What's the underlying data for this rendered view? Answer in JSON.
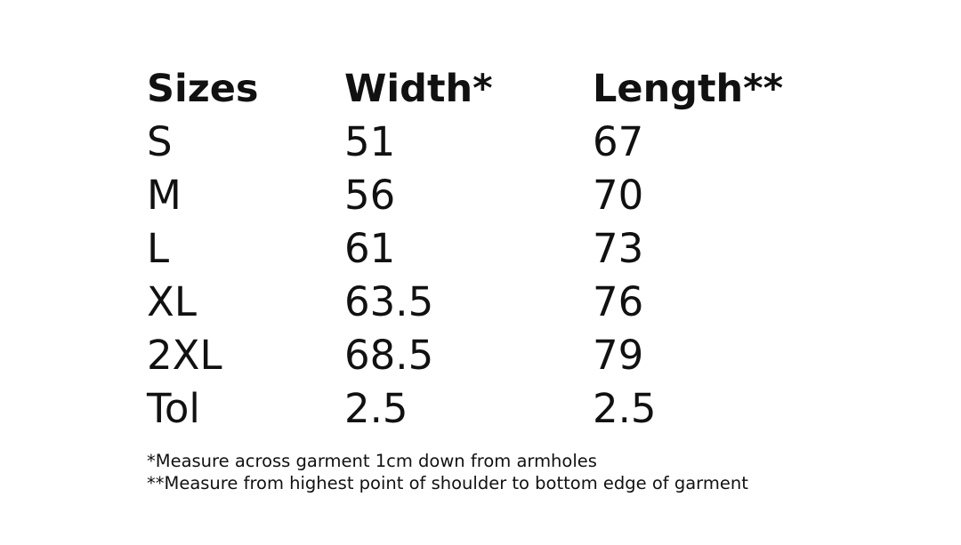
{
  "table": {
    "header": [
      "Sizes",
      "Width*",
      "Length**"
    ],
    "rows": [
      [
        "S",
        51,
        67
      ],
      [
        "M",
        56,
        70
      ],
      [
        "L",
        61,
        73
      ],
      [
        "XL",
        63.5,
        76
      ],
      [
        "2XL",
        68.5,
        79
      ],
      [
        "Tol",
        2.5,
        2.5
      ]
    ]
  },
  "notes": [
    "*Measure across garment 1cm down from armholes",
    "**Measure from highest point of shoulder to bottom edge of garment"
  ]
}
